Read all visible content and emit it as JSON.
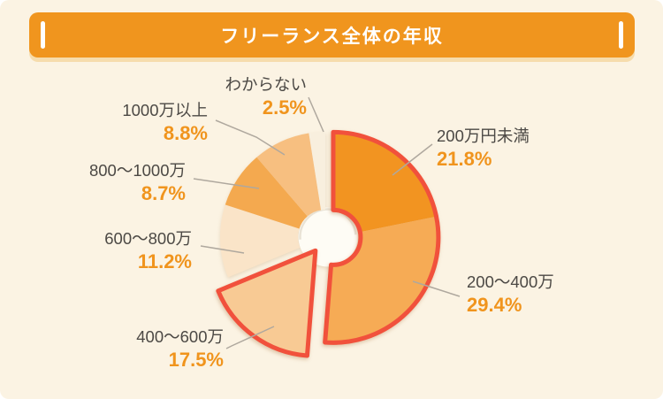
{
  "title": "フリーランス全体の年収",
  "chart_data": {
    "type": "pie",
    "title": "フリーランス全体の年収",
    "categories": [
      "200万円未満",
      "200〜400万",
      "400〜600万",
      "600〜800万",
      "800〜1000万",
      "1000万以上",
      "わからない"
    ],
    "values": [
      21.8,
      29.4,
      17.5,
      11.2,
      8.7,
      8.8,
      2.5
    ],
    "value_labels": [
      "21.8%",
      "29.4%",
      "17.5%",
      "11.2%",
      "8.7%",
      "8.8%",
      "2.5%"
    ],
    "slice_colors": [
      "#F29421",
      "#F6AB55",
      "#F8CA94",
      "#FAE4C8",
      "#F4A94F",
      "#F7BF80",
      "#F8EFDE"
    ],
    "donut": true,
    "start_angle": "top",
    "direction": "clockwise",
    "highlight": {
      "outlined_slices": [
        "200万円未満",
        "200〜400万",
        "400〜600万"
      ],
      "outline_color": "#F1513C",
      "exploded_group": [
        "200万円未満",
        "200〜400万"
      ],
      "exploded_wedge": "400〜600万"
    }
  },
  "colors": {
    "background": "#FBF3E3",
    "banner": "#F0951E",
    "banner_shadow": "#F6DCAC",
    "banner_text": "#FFFFFF",
    "label_text": "#4C4945",
    "percent_text": "#F0941D",
    "leader_line": "#AFA89E",
    "hole": "#FEFCF5",
    "highlight_stroke": "#F1513C"
  }
}
